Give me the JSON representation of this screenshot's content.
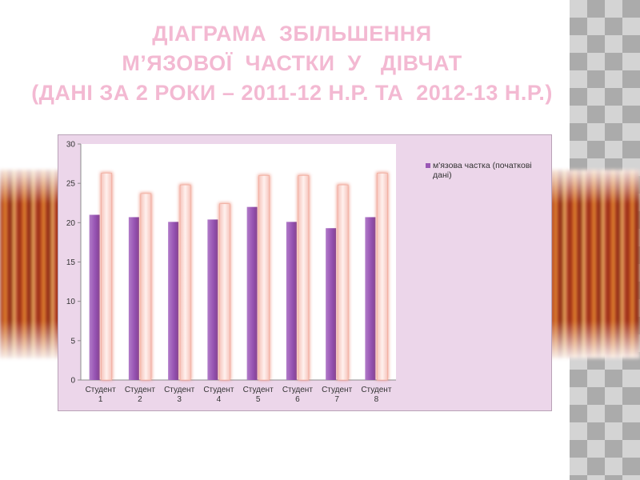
{
  "title": {
    "line1": "ДІАГРАМА  ЗБІЛЬШЕННЯ",
    "line2": "М’ЯЗОВОЇ  ЧАСТКИ  У   ДІВЧАТ",
    "line3": "(ДАНІ ЗА 2 РОКИ – 2011-12 Н.Р. ТА  2012-13 Н.Р.)"
  },
  "colors": {
    "title": "#f3b9d2",
    "series1": "#9a57b5",
    "series2": "#fbe1df",
    "series2_glow": "#e9745d",
    "chart_bg": "#ecd6ea",
    "plot_bg": "#ffffff"
  },
  "chart_data": {
    "type": "bar",
    "categories": [
      [
        "Студент",
        "1"
      ],
      [
        "Студент",
        "2"
      ],
      [
        "Студент",
        "3"
      ],
      [
        "Студент",
        "4"
      ],
      [
        "Студент",
        "5"
      ],
      [
        "Студент",
        "6"
      ],
      [
        "Студент",
        "7"
      ],
      [
        "Студент",
        "8"
      ]
    ],
    "series": [
      {
        "name": "м'язова частка (початкові дані)",
        "values": [
          21.0,
          20.7,
          20.1,
          20.4,
          22.0,
          20.1,
          19.3,
          20.7
        ]
      },
      {
        "values": [
          26.3,
          23.7,
          24.8,
          22.4,
          26.0,
          26.0,
          24.8,
          26.3
        ]
      }
    ],
    "ylim": [
      0,
      30
    ],
    "yticks": [
      0,
      5,
      10,
      15,
      20,
      25,
      30
    ],
    "grid": false,
    "legend_position": "right"
  }
}
